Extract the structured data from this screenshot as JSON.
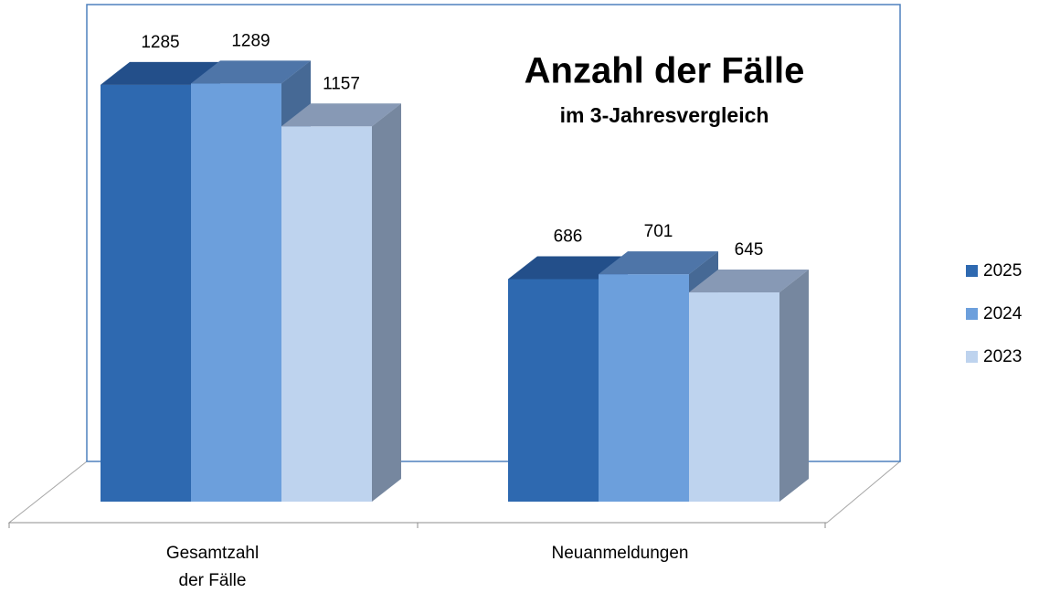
{
  "chart_data": {
    "type": "bar3d",
    "title": "Anzahl der Fälle",
    "subtitle": "im 3-Jahresvergleich",
    "categories": [
      "Gesamtzahl\nder Fälle",
      "Neuanmeldungen"
    ],
    "series": [
      {
        "name": "2025",
        "color": "#2e69b0",
        "values": [
          1285,
          686
        ]
      },
      {
        "name": "2024",
        "color": "#6c9fdc",
        "values": [
          1289,
          701
        ]
      },
      {
        "name": "2023",
        "color": "#bed3ee",
        "values": [
          1157,
          645
        ]
      }
    ],
    "legend": "right"
  }
}
